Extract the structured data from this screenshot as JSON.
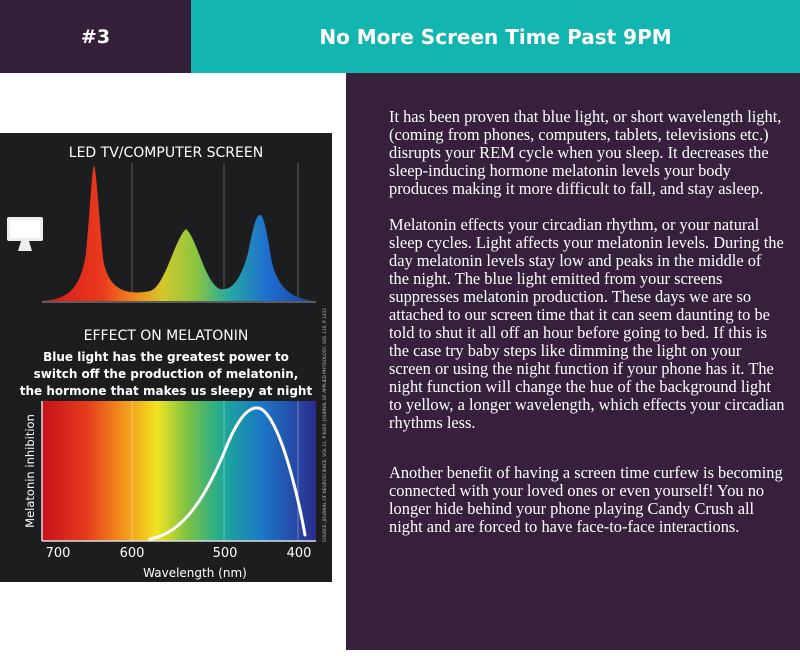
{
  "header": {
    "number": "#3",
    "title": "No More Screen Time Past 9PM"
  },
  "article": {
    "paragraphs": [
      "It has been proven that blue light, or short wavelength light, (coming from phones, computers, tablets, televisions etc.) disrupts your REM cycle when you sleep. It decreases the sleep-inducing hormone melatonin levels your body produces making it more difficult to fall, and stay asleep.",
      "Melatonin effects your circadian rhythm, or your natural sleep cycles. Light affects your melatonin levels. During the day melatonin levels stay low and peaks in the middle of the night. The blue light emitted from your screens suppresses melatonin production. These days we are so attached to our screen time that it can seem daunting to be told to shut it all off an hour before going to bed. If this is the case try baby steps like dimming the light on your screen or using the night function if your phone has it. The night function will change the hue of the background light to yellow, a longer wavelength, which effects your circadian rhythms less.",
      "Another benefit of having a screen time curfew is becoming connected with your loved ones or even yourself! You no longer hide behind your phone playing Candy Crush all night and are forced to have face-to-face interactions."
    ]
  },
  "infographic": {
    "top_title": "LED TV/COMPUTER SCREEN",
    "bottom_title": "EFFECT ON MELATONIN",
    "subtitle_lines": [
      "Blue light has the greatest power to",
      "switch off the production of melatonin,",
      "the hormone that makes us sleepy at night"
    ],
    "y_label": "Melatonin inhibition",
    "x_label": "Wavelength (nm)",
    "x_ticks": [
      "700",
      "600",
      "500",
      "400"
    ],
    "source": "SOURCE: JOURNAL OF NEUROSCIENCE, VOL 21, P 6405; JOURNAL OF APPLIED PHYSIOLOGY, VOL 110, P 1432",
    "monitor_icon": "monitor-icon",
    "colors": {
      "background": "#1c1d1f",
      "red_peak": "#e8321e",
      "green_peak": "#8cc63f",
      "blue_peak": "#1f6fd0"
    }
  }
}
